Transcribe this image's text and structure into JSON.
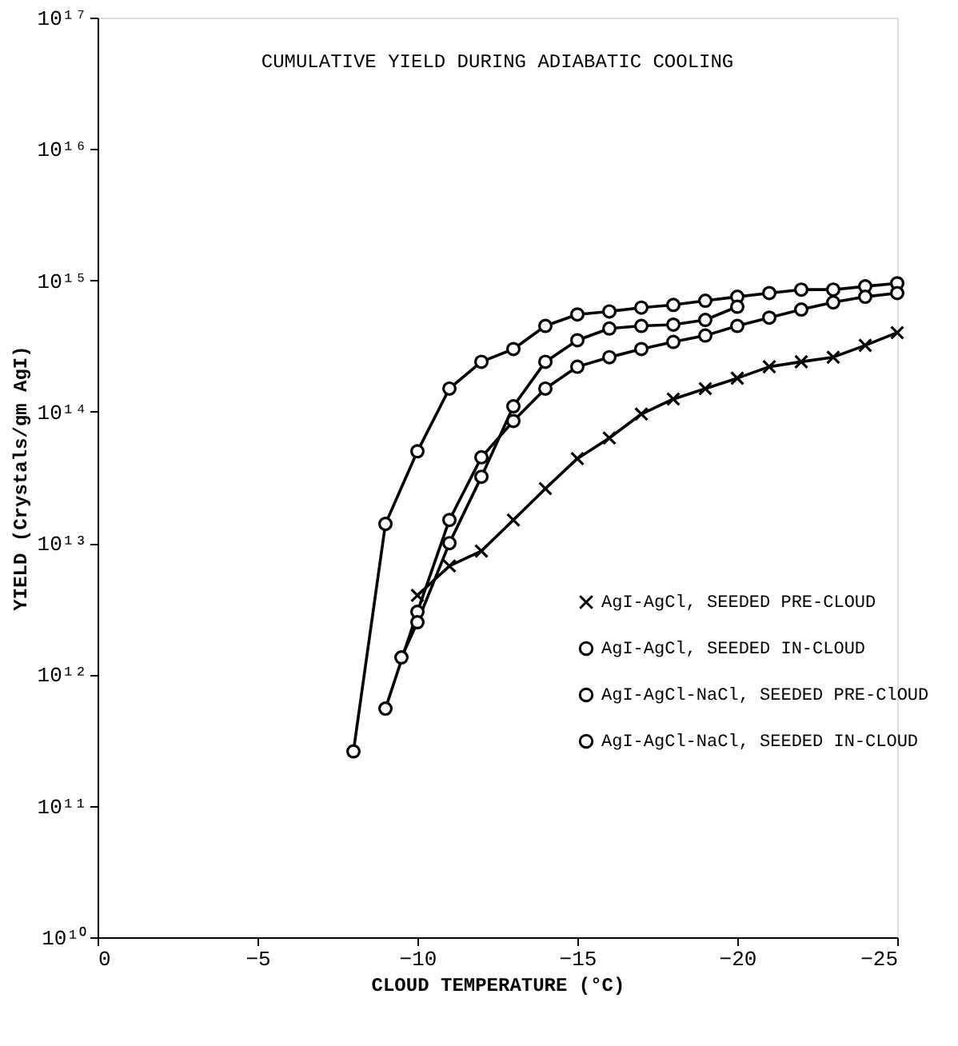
{
  "chart_data": {
    "type": "line",
    "title": "CUMULATIVE YIELD DURING ADIABATIC COOLING",
    "xlabel": "CLOUD TEMPERATURE (°C)",
    "ylabel": "YIELD (Crystals/gm AgI)",
    "log": "y",
    "grid": false,
    "legend": "bottom right",
    "line_style": "solid",
    "xlim": [
      0,
      -25
    ],
    "xticks": [
      0,
      -5,
      -10,
      -15,
      -20,
      -25
    ],
    "ylim": [
      10000000000.0,
      1e+17
    ],
    "yticks": [
      {
        "value": 10000000000.0,
        "label": "10¹⁰"
      },
      {
        "value": 100000000000.0,
        "label": "10¹¹"
      },
      {
        "value": 1000000000000.0,
        "label": "10¹²"
      },
      {
        "value": 10000000000000.0,
        "label": "10¹³"
      },
      {
        "value": 100000000000000.0,
        "label": "10¹⁴"
      },
      {
        "value": 1000000000000000.0,
        "label": "10¹⁵"
      },
      {
        "value": 1e+16,
        "label": "10¹⁶"
      },
      {
        "value": 1e+17,
        "label": "10¹⁷"
      }
    ],
    "series": [
      {
        "name": "AgI-AgCl, SEEDED PRE-CLOUD",
        "color": "#000000",
        "marker": "cross",
        "x": [
          -10,
          -11,
          -12,
          -13,
          -14,
          -15,
          -16,
          -17,
          -18,
          -19,
          -20,
          -21,
          -22,
          -23,
          -24,
          -25
        ],
        "values": [
          4000000000000.0,
          6700000000000.0,
          8700000000000.0,
          15000000000000.0,
          26000000000000.0,
          44000000000000.0,
          63000000000000.0,
          96000000000000.0,
          125000000000000.0,
          150000000000000.0,
          180000000000000.0,
          220000000000000.0,
          240000000000000.0,
          260000000000000.0,
          320000000000000.0,
          400000000000000.0
        ]
      },
      {
        "name": "AgI-AgCl, SEEDED IN-CLOUD",
        "color": "#000000",
        "marker": "circle",
        "x": [
          -8,
          -9,
          -10,
          -11,
          -12,
          -13,
          -14,
          -15,
          -16,
          -17,
          -18,
          -19,
          -20,
          -21,
          -22,
          -23,
          -24,
          -25
        ],
        "values": [
          260000000000.0,
          14000000000000.0,
          50000000000000.0,
          150000000000000.0,
          240000000000000.0,
          300000000000000.0,
          450000000000000.0,
          550000000000000.0,
          580000000000000.0,
          620000000000000.0,
          650000000000000.0,
          700000000000000.0,
          750000000000000.0,
          800000000000000.0,
          850000000000000.0,
          850000000000000.0,
          900000000000000.0,
          950000000000000.0
        ]
      },
      {
        "name": "AgI-AgCl-NaCl, SEEDED PRE-ClOUD",
        "color": "#000000",
        "marker": "circle",
        "x": [
          -9,
          -10,
          -11,
          -12,
          -13,
          -14,
          -15,
          -16,
          -17,
          -18,
          -19,
          -20,
          -21,
          -22,
          -23,
          -24,
          -25
        ],
        "values": [
          550000000000.0,
          3000000000000.0,
          15000000000000.0,
          45000000000000.0,
          85000000000000.0,
          150000000000000.0,
          220000000000000.0,
          260000000000000.0,
          300000000000000.0,
          340000000000000.0,
          380000000000000.0,
          450000000000000.0,
          520000000000000.0,
          600000000000000.0,
          680000000000000.0,
          750000000000000.0,
          800000000000000.0
        ]
      },
      {
        "name": "AgI-AgCl-NaCl, SEEDED IN-CLOUD",
        "color": "#000000",
        "marker": "circle",
        "x": [
          -9.5,
          -10,
          -11,
          -12,
          -13,
          -14,
          -15,
          -16,
          -17,
          -18,
          -19,
          -20
        ],
        "values": [
          1350000000000.0,
          2500000000000.0,
          10000000000000.0,
          32000000000000.0,
          110000000000000.0,
          240000000000000.0,
          350000000000000.0,
          430000000000000.0,
          450000000000000.0,
          460000000000000.0,
          500000000000000.0,
          630000000000000.0
        ]
      }
    ]
  }
}
